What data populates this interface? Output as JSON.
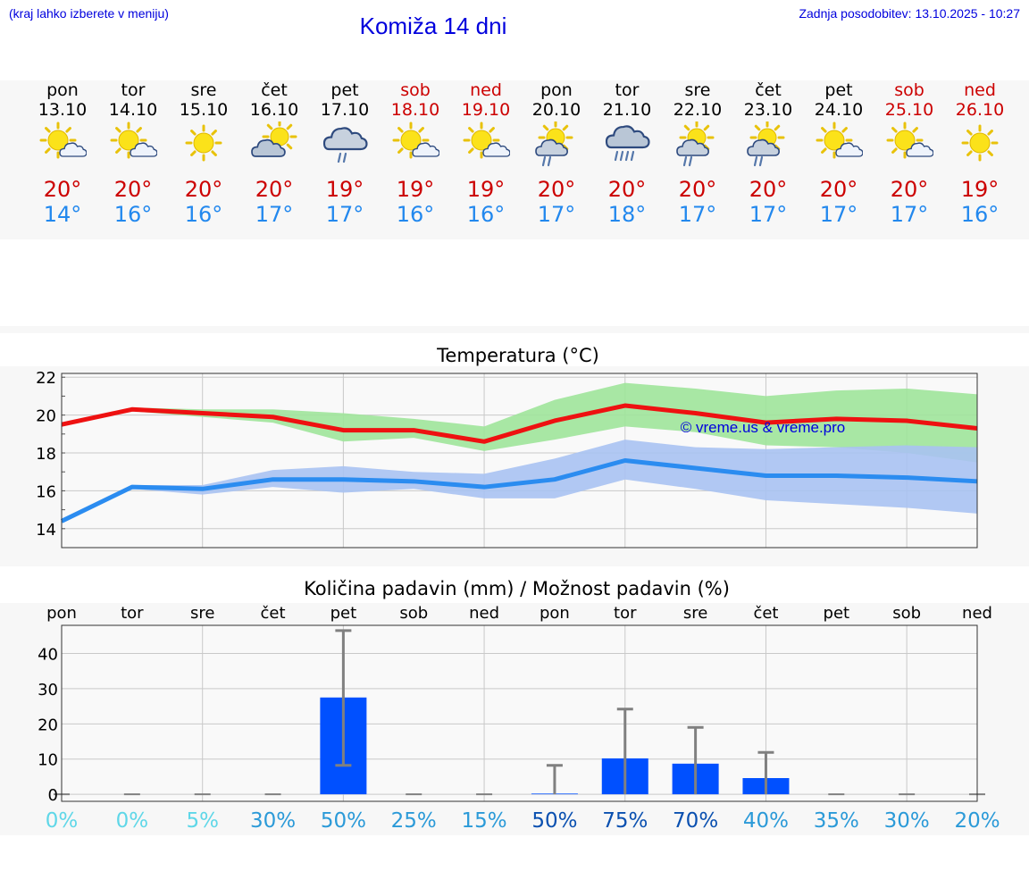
{
  "header": {
    "hint": "(kraj lahko izberete v meniju)",
    "title": "Komiža 14 dni",
    "updated": "Zadnja posodobitev: 13.10.2025 - 10:27"
  },
  "days": [
    {
      "name": "pon",
      "date": "13.10",
      "weekend": false,
      "icon": "sun-cloud-icon",
      "max": "20°",
      "min": "14°"
    },
    {
      "name": "tor",
      "date": "14.10",
      "weekend": false,
      "icon": "sun-cloud-icon",
      "max": "20°",
      "min": "16°"
    },
    {
      "name": "sre",
      "date": "15.10",
      "weekend": false,
      "icon": "sun-icon",
      "max": "20°",
      "min": "16°"
    },
    {
      "name": "čet",
      "date": "16.10",
      "weekend": false,
      "icon": "cloud-sun-icon",
      "max": "20°",
      "min": "17°"
    },
    {
      "name": "pet",
      "date": "17.10",
      "weekend": false,
      "icon": "cloud-rain-icon",
      "max": "19°",
      "min": "17°"
    },
    {
      "name": "sob",
      "date": "18.10",
      "weekend": true,
      "icon": "sun-cloud-icon",
      "max": "19°",
      "min": "16°"
    },
    {
      "name": "ned",
      "date": "19.10",
      "weekend": true,
      "icon": "sun-cloud-icon",
      "max": "19°",
      "min": "16°"
    },
    {
      "name": "pon",
      "date": "20.10",
      "weekend": false,
      "icon": "sun-cloud-rain-icon",
      "max": "20°",
      "min": "17°"
    },
    {
      "name": "tor",
      "date": "21.10",
      "weekend": false,
      "icon": "cloud-heavy-rain-icon",
      "max": "20°",
      "min": "18°"
    },
    {
      "name": "sre",
      "date": "22.10",
      "weekend": false,
      "icon": "sun-cloud-rain-icon",
      "max": "20°",
      "min": "17°"
    },
    {
      "name": "čet",
      "date": "23.10",
      "weekend": false,
      "icon": "sun-cloud-rain-icon",
      "max": "20°",
      "min": "17°"
    },
    {
      "name": "pet",
      "date": "24.10",
      "weekend": false,
      "icon": "sun-cloud-icon",
      "max": "20°",
      "min": "17°"
    },
    {
      "name": "sob",
      "date": "25.10",
      "weekend": true,
      "icon": "sun-cloud-icon",
      "max": "20°",
      "min": "17°"
    },
    {
      "name": "ned",
      "date": "26.10",
      "weekend": true,
      "icon": "sun-icon",
      "max": "19°",
      "min": "16°"
    }
  ],
  "colors": {
    "max_line": "#ee1111",
    "max_band": "#9fe49a",
    "min_line": "#2b8cf0",
    "min_band": "#a9c2f2",
    "bar": "#0050ff",
    "whisker": "#808080",
    "weekend_text": "#cc0000",
    "title_blue": "#0000dd"
  },
  "chart_data": [
    {
      "type": "line",
      "title": "Temperatura (°C)",
      "ylim": [
        13,
        22.2
      ],
      "yticks": [
        "14",
        "16",
        "18",
        "20",
        "22"
      ],
      "x": [
        0,
        1,
        2,
        3,
        4,
        5,
        6,
        7,
        8,
        9,
        10,
        11,
        12,
        13
      ],
      "series": [
        {
          "role": "max",
          "values": [
            19.5,
            20.3,
            20.1,
            19.9,
            19.2,
            19.2,
            18.6,
            19.7,
            20.5,
            20.1,
            19.6,
            19.8,
            19.7,
            19.3
          ],
          "band_low": [
            19.5,
            20.2,
            19.9,
            19.6,
            18.6,
            18.8,
            18.1,
            18.7,
            19.4,
            19.1,
            18.4,
            18.3,
            18.0,
            17.5
          ],
          "band_high": [
            19.5,
            20.4,
            20.3,
            20.3,
            20.1,
            19.8,
            19.4,
            20.8,
            21.7,
            21.4,
            21.0,
            21.3,
            21.4,
            21.1
          ]
        },
        {
          "role": "min",
          "values": [
            14.4,
            16.2,
            16.1,
            16.6,
            16.6,
            16.5,
            16.2,
            16.6,
            17.6,
            17.2,
            16.8,
            16.8,
            16.7,
            16.5
          ],
          "band_low": [
            14.4,
            16.1,
            15.8,
            16.2,
            15.9,
            16.1,
            15.6,
            15.6,
            16.6,
            16.1,
            15.5,
            15.3,
            15.1,
            14.8
          ],
          "band_high": [
            14.4,
            16.3,
            16.3,
            17.1,
            17.3,
            17.0,
            16.9,
            17.7,
            18.7,
            18.3,
            18.2,
            18.3,
            18.4,
            18.3
          ]
        }
      ],
      "watermark": "© vreme.us & vreme.pro"
    },
    {
      "type": "bar",
      "title": "Količina padavin (mm) / Možnost padavin (%)",
      "ylim": [
        -2,
        48
      ],
      "yticks": [
        "0",
        "10",
        "20",
        "30",
        "40"
      ],
      "categories": [
        "pon",
        "tor",
        "sre",
        "čet",
        "pet",
        "sob",
        "ned",
        "pon",
        "tor",
        "sre",
        "čet",
        "pet",
        "sob",
        "ned"
      ],
      "values": [
        0,
        0,
        0,
        0,
        27.5,
        0,
        0,
        0.2,
        10.2,
        8.7,
        4.6,
        0,
        0,
        0
      ],
      "error_high": [
        0,
        0,
        0,
        0,
        46.5,
        0,
        0,
        8.2,
        24.2,
        19.0,
        11.9,
        0,
        0,
        0
      ],
      "error_low": [
        0,
        0,
        0,
        0,
        8.2,
        0,
        0,
        0,
        0,
        0,
        0,
        0,
        0,
        0
      ],
      "probability": [
        "0%",
        "0%",
        "5%",
        "30%",
        "50%",
        "25%",
        "15%",
        "50%",
        "75%",
        "70%",
        "40%",
        "35%",
        "30%",
        "20%"
      ],
      "probability_colors": [
        "#5fd7e8",
        "#5fd7e8",
        "#5fd7e8",
        "#2b9ad8",
        "#2b9ad8",
        "#2b9ad8",
        "#2b9ad8",
        "#0a50b0",
        "#0a50b0",
        "#0a50b0",
        "#2b9ad8",
        "#2b9ad8",
        "#2b9ad8",
        "#2b9ad8"
      ]
    }
  ]
}
